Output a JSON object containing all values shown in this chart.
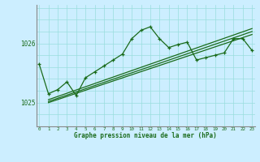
{
  "main_line_x": [
    0,
    1,
    2,
    3,
    4,
    5,
    6,
    7,
    8,
    9,
    10,
    11,
    12,
    13,
    14,
    15,
    16,
    17,
    18,
    19,
    20,
    21,
    22,
    23
  ],
  "main_line_y": [
    1025.65,
    1025.15,
    1025.22,
    1025.35,
    1025.12,
    1025.42,
    1025.52,
    1025.62,
    1025.72,
    1025.82,
    1026.08,
    1026.22,
    1026.28,
    1026.08,
    1025.93,
    1025.98,
    1026.02,
    1025.72,
    1025.76,
    1025.8,
    1025.84,
    1026.08,
    1026.08,
    1025.88
  ],
  "trend_lines": [
    [
      [
        1,
        23
      ],
      [
        1025.0,
        1026.15
      ]
    ],
    [
      [
        1,
        23
      ],
      [
        1025.02,
        1026.2
      ]
    ],
    [
      [
        1,
        23
      ],
      [
        1025.05,
        1026.25
      ]
    ]
  ],
  "bg_color": "#cceeff",
  "line_color": "#1a6b1a",
  "grid_color": "#99dddd",
  "ylim": [
    1024.6,
    1026.65
  ],
  "xlim": [
    -0.3,
    23.3
  ],
  "xlabel": "Graphe pression niveau de la mer (hPa)",
  "xticks": [
    0,
    1,
    2,
    3,
    4,
    5,
    6,
    7,
    8,
    9,
    10,
    11,
    12,
    13,
    14,
    15,
    16,
    17,
    18,
    19,
    20,
    21,
    22,
    23
  ],
  "yticks": [
    1025,
    1026
  ],
  "hgrid_vals": [
    1024.6,
    1024.8,
    1025.0,
    1025.2,
    1025.4,
    1025.6,
    1025.8,
    1026.0,
    1026.2,
    1026.4,
    1026.6
  ]
}
